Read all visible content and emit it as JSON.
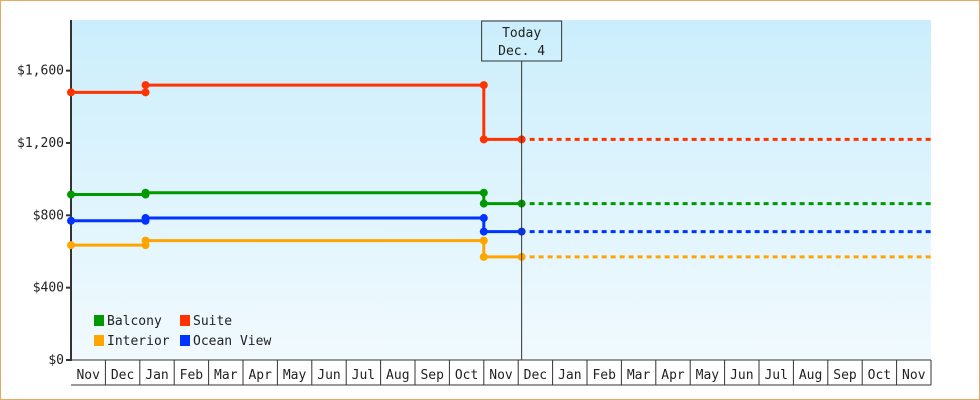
{
  "chart_data": {
    "type": "line",
    "title": "",
    "xlabel": "",
    "ylabel": "",
    "ylim": [
      0,
      1880
    ],
    "y_ticks": [
      "$0",
      "$400",
      "$800",
      "$1,200",
      "$1,600"
    ],
    "y_tick_values": [
      0,
      400,
      800,
      1200,
      1600
    ],
    "x_ticks": [
      "Nov",
      "Dec",
      "Jan",
      "Feb",
      "Mar",
      "Apr",
      "May",
      "Jun",
      "Jul",
      "Aug",
      "Sep",
      "Oct",
      "Nov",
      "Dec",
      "Jan",
      "Feb",
      "Mar",
      "Apr",
      "May",
      "Jun",
      "Jul",
      "Aug",
      "Sep",
      "Oct",
      "Nov"
    ],
    "grid": false,
    "legend_position": "bottom-left",
    "today_marker": {
      "line1": "Today",
      "line2": "Dec. 4",
      "tick": 13,
      "day": 4
    },
    "series": [
      {
        "name": "Suite",
        "color": "#ff3300",
        "points": [
          {
            "tick": 0,
            "day": 1,
            "y": 1480
          },
          {
            "tick": 2,
            "day": 6,
            "y": 1480
          },
          {
            "tick": 2,
            "day": 6,
            "y": 1520
          },
          {
            "tick": 12,
            "day": 1,
            "y": 1520
          },
          {
            "tick": 12,
            "day": 1,
            "y": 1220
          },
          {
            "tick": 13,
            "day": 4,
            "y": 1220
          }
        ],
        "projection": 1220
      },
      {
        "name": "Balcony",
        "color": "#009900",
        "points": [
          {
            "tick": 0,
            "day": 1,
            "y": 915
          },
          {
            "tick": 2,
            "day": 6,
            "y": 915
          },
          {
            "tick": 2,
            "day": 6,
            "y": 925
          },
          {
            "tick": 12,
            "day": 1,
            "y": 925
          },
          {
            "tick": 12,
            "day": 1,
            "y": 865
          },
          {
            "tick": 13,
            "day": 4,
            "y": 865
          }
        ],
        "projection": 865
      },
      {
        "name": "Ocean View",
        "color": "#0033ff",
        "points": [
          {
            "tick": 0,
            "day": 1,
            "y": 770
          },
          {
            "tick": 2,
            "day": 6,
            "y": 770
          },
          {
            "tick": 2,
            "day": 6,
            "y": 785
          },
          {
            "tick": 12,
            "day": 1,
            "y": 785
          },
          {
            "tick": 12,
            "day": 1,
            "y": 710
          },
          {
            "tick": 13,
            "day": 4,
            "y": 710
          }
        ],
        "projection": 710
      },
      {
        "name": "Interior",
        "color": "#ffa500",
        "points": [
          {
            "tick": 0,
            "day": 1,
            "y": 635
          },
          {
            "tick": 2,
            "day": 6,
            "y": 635
          },
          {
            "tick": 2,
            "day": 6,
            "y": 660
          },
          {
            "tick": 12,
            "day": 1,
            "y": 660
          },
          {
            "tick": 12,
            "day": 1,
            "y": 570
          },
          {
            "tick": 13,
            "day": 4,
            "y": 570
          }
        ],
        "projection": 570
      }
    ],
    "legend": [
      {
        "name": "Balcony",
        "color": "#009900"
      },
      {
        "name": "Suite",
        "color": "#ff3300"
      },
      {
        "name": "Interior",
        "color": "#ffa500"
      },
      {
        "name": "Ocean View",
        "color": "#0033ff"
      }
    ]
  }
}
